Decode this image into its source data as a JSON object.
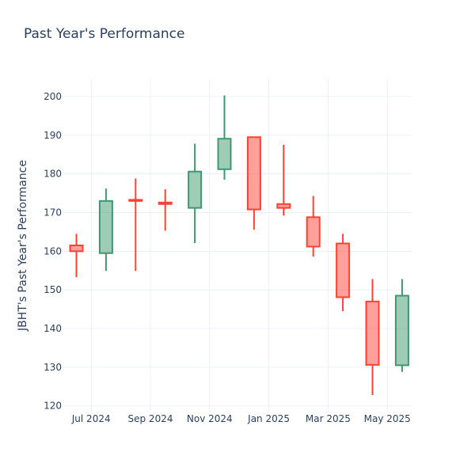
{
  "chart_data": {
    "type": "candlestick",
    "title": "Past Year's Performance",
    "xlabel": "",
    "ylabel": "JBHT's Past Year's Performance",
    "ylim": [
      118.5,
      204.5
    ],
    "y_ticks": [
      120,
      130,
      140,
      150,
      160,
      170,
      180,
      190,
      200
    ],
    "x_ticks": [
      "Jul 2024",
      "Sep 2024",
      "Nov 2024",
      "Jan 2025",
      "Mar 2025",
      "May 2025"
    ],
    "grid": true,
    "colors": {
      "increasing": "#3d9970",
      "decreasing": "#ff4136"
    },
    "candles": [
      {
        "date": "2024-06",
        "open": 161.5,
        "high": 164.5,
        "low": 153.3,
        "close": 160.0
      },
      {
        "date": "2024-07",
        "open": 159.5,
        "high": 176.2,
        "low": 154.9,
        "close": 173.0
      },
      {
        "date": "2024-08",
        "open": 173.3,
        "high": 178.8,
        "low": 154.9,
        "close": 173.0
      },
      {
        "date": "2024-09",
        "open": 172.6,
        "high": 176.0,
        "low": 165.3,
        "close": 172.2
      },
      {
        "date": "2024-10",
        "open": 171.2,
        "high": 187.8,
        "low": 162.1,
        "close": 180.6
      },
      {
        "date": "2024-11",
        "open": 181.2,
        "high": 200.3,
        "low": 178.5,
        "close": 189.1
      },
      {
        "date": "2024-12",
        "open": 189.5,
        "high": 189.5,
        "low": 165.6,
        "close": 170.8
      },
      {
        "date": "2025-01",
        "open": 172.2,
        "high": 187.5,
        "low": 169.2,
        "close": 171.2
      },
      {
        "date": "2025-02",
        "open": 168.8,
        "high": 174.3,
        "low": 158.6,
        "close": 161.2
      },
      {
        "date": "2025-03",
        "open": 162.0,
        "high": 164.5,
        "low": 144.5,
        "close": 148.1
      },
      {
        "date": "2025-04",
        "open": 147.0,
        "high": 152.8,
        "low": 122.8,
        "close": 130.6
      },
      {
        "date": "2025-05",
        "open": 130.5,
        "high": 152.8,
        "low": 128.8,
        "close": 148.5
      }
    ]
  }
}
